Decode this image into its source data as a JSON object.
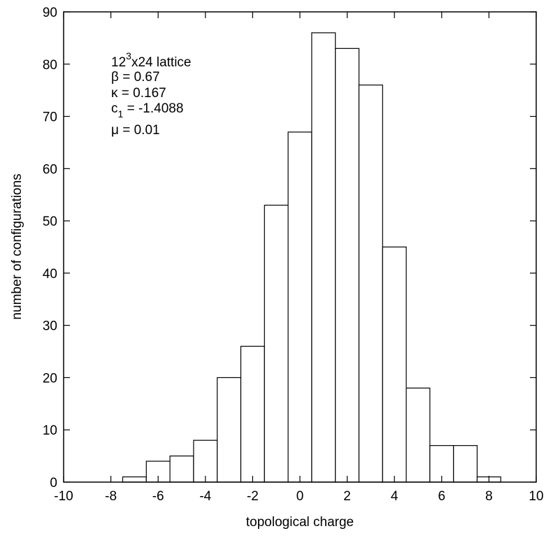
{
  "chart_data": {
    "type": "bar",
    "x": [
      -7,
      -6,
      -5,
      -4,
      -3,
      -2,
      -1,
      0,
      1,
      2,
      3,
      4,
      5,
      6,
      7,
      8
    ],
    "values": [
      1,
      4,
      5,
      8,
      20,
      26,
      53,
      67,
      86,
      83,
      76,
      45,
      18,
      7,
      7,
      1
    ],
    "xlabel": "topological charge",
    "ylabel": "number of configurations",
    "xlim": [
      -10,
      10
    ],
    "ylim": [
      0,
      90
    ],
    "xticks": [
      -10,
      -8,
      -6,
      -4,
      -2,
      0,
      2,
      4,
      6,
      8,
      10
    ],
    "yticks": [
      0,
      10,
      20,
      30,
      40,
      50,
      60,
      70,
      80,
      90
    ],
    "grid": false,
    "annotations": {
      "lattice": {
        "base": "12",
        "sup": "3",
        "rest": "x24 lattice"
      },
      "beta": "β = 0.67",
      "kappa": "κ = 0.167",
      "c1": {
        "base": "c",
        "sub": "1",
        "rest": " = -1.4088"
      },
      "mu": "μ = 0.01"
    }
  }
}
